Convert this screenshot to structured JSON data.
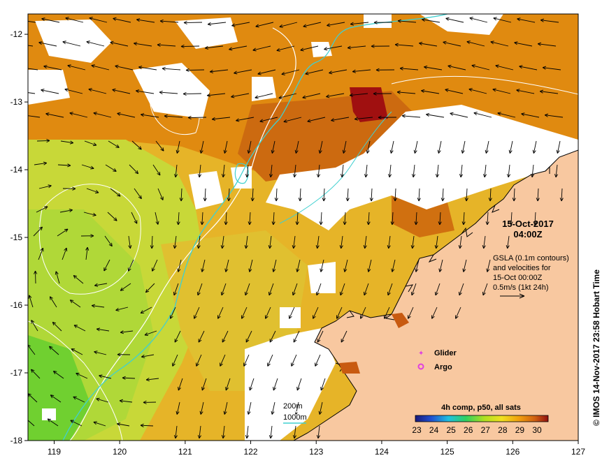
{
  "map": {
    "lon_ticks": [
      "119",
      "120",
      "121",
      "122",
      "123",
      "124",
      "125",
      "126",
      "127"
    ],
    "lat_ticks": [
      "-12",
      "-13",
      "-14",
      "-15",
      "-16",
      "-17",
      "-18"
    ],
    "lon_range": [
      118.6,
      127.0
    ],
    "lat_range": [
      -18.0,
      -11.7
    ]
  },
  "annotations": {
    "date": "15-Oct-2017",
    "time": "04:00Z",
    "gsla_line1": "GSLA (0.1m contours)",
    "gsla_line2": "and velocities for",
    "gsla_line3": "15-Oct 00:00Z",
    "gsla_line4": "0.5m/s (1kt 24h)",
    "legend_glider": "Glider",
    "legend_argo": "Argo",
    "depth_200": "200m",
    "depth_1000": "1000m",
    "colorbar_title": "4h comp, p50, all sats",
    "colorbar_ticks": [
      "23",
      "24",
      "25",
      "26",
      "27",
      "28",
      "29",
      "30"
    ],
    "credit": "© IMOS 14-Nov-2017 23:58 Hobart Time"
  },
  "colors": {
    "land": "#f8c8a0",
    "cloud": "#ffffff",
    "isobath_200": "#ffffff",
    "isobath_1000": "#40d0d0",
    "glider": "#e040e0",
    "argo": "#e040e0"
  }
}
